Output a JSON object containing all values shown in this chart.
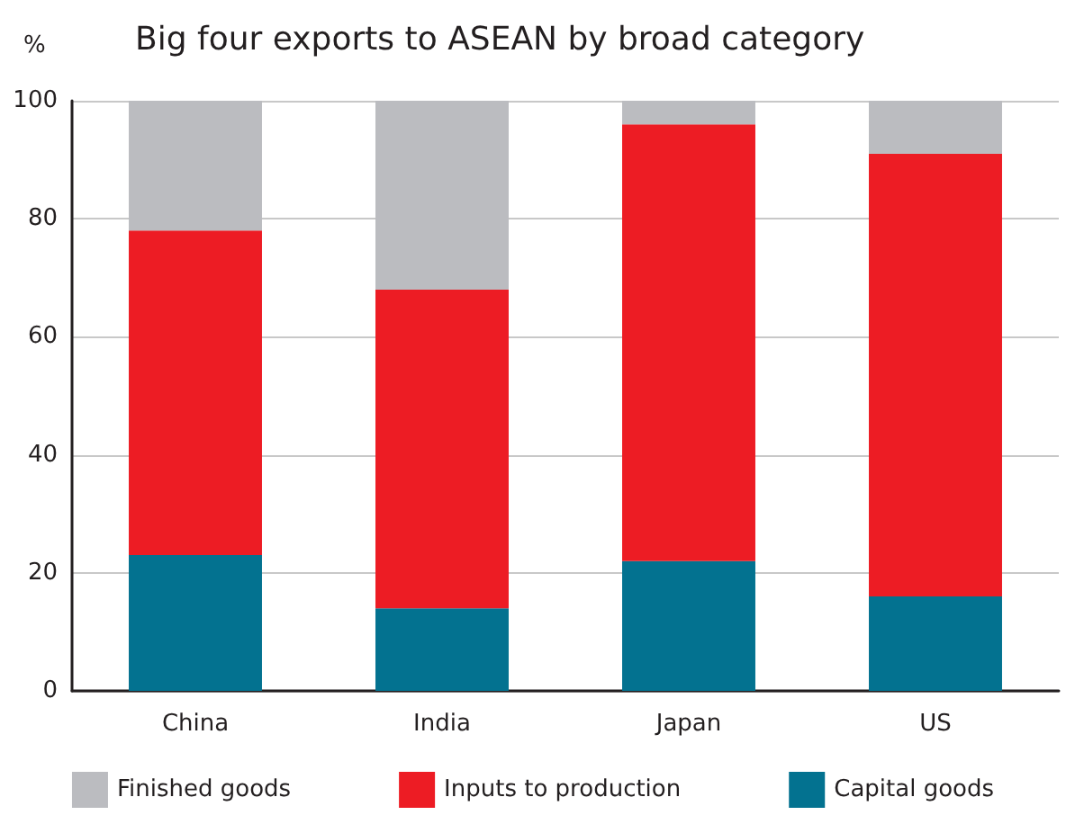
{
  "chart_data": {
    "type": "bar",
    "title": "Big four exports to ASEAN by broad category",
    "ylabel": "%",
    "categories": [
      "China",
      "India",
      "Japan",
      "US"
    ],
    "series": [
      {
        "name": "Capital goods",
        "color": "#037290",
        "values": [
          23,
          14,
          22,
          16
        ]
      },
      {
        "name": "Inputs to production",
        "color": "#ed1c24",
        "values": [
          55,
          54,
          74,
          75
        ]
      },
      {
        "name": "Finished goods",
        "color": "#bbbcc0",
        "values": [
          22,
          32,
          4,
          9
        ]
      }
    ],
    "stacked": true,
    "ylim": [
      0,
      100
    ],
    "yticks": [
      0,
      20,
      40,
      60,
      80,
      100
    ],
    "grid": "y",
    "legend": "bottom"
  }
}
